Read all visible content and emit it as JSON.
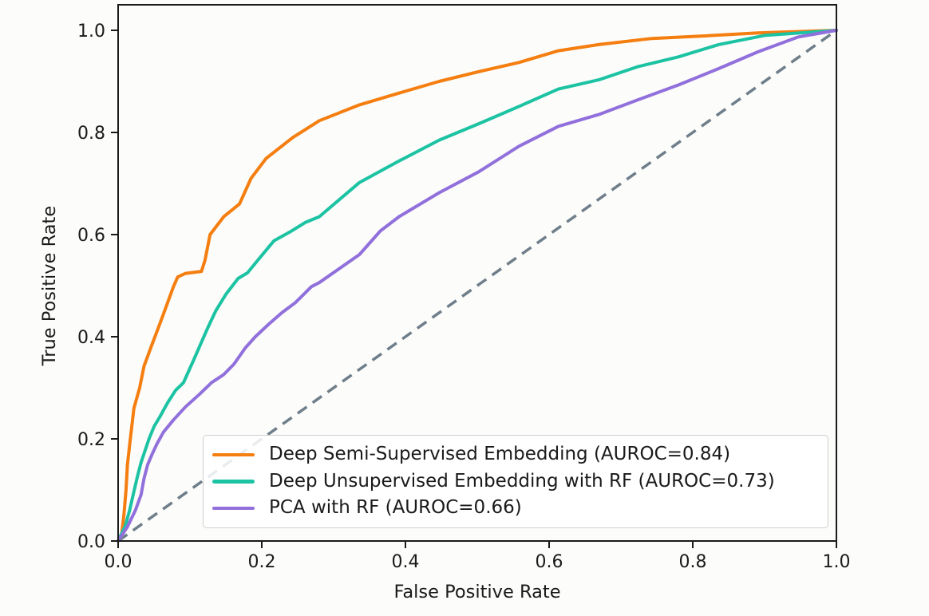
{
  "figure": {
    "background": "#fcfcfa",
    "spine_color": "#1a1a1a",
    "tick_label_color": "#1a1a1a"
  },
  "chart_data": {
    "type": "line",
    "title": "",
    "xlabel": "False Positive Rate",
    "ylabel": "True Positive Rate",
    "xlim": [
      0.0,
      1.0
    ],
    "ylim": [
      0.0,
      1.05
    ],
    "grid": false,
    "xticks": [
      "0.0",
      "0.2",
      "0.4",
      "0.6",
      "0.8",
      "1.0"
    ],
    "yticks": [
      "0.0",
      "0.2",
      "0.4",
      "0.6",
      "0.8",
      "1.0"
    ],
    "legend_position": "lower right inside axes",
    "series": [
      {
        "name": "Deep Semi-Supervised Embedding (AUROC=0.84)",
        "auroc": 0.84,
        "color": "#f57e10",
        "line_style": "solid",
        "points": [
          [
            0,
            0
          ],
          [
            0.005,
            0.015
          ],
          [
            0.008,
            0.05
          ],
          [
            0.011,
            0.1
          ],
          [
            0.013,
            0.15
          ],
          [
            0.017,
            0.2
          ],
          [
            0.022,
            0.26
          ],
          [
            0.03,
            0.3
          ],
          [
            0.036,
            0.342
          ],
          [
            0.047,
            0.384
          ],
          [
            0.058,
            0.425
          ],
          [
            0.069,
            0.467
          ],
          [
            0.077,
            0.498
          ],
          [
            0.083,
            0.517
          ],
          [
            0.094,
            0.524
          ],
          [
            0.116,
            0.528
          ],
          [
            0.121,
            0.55
          ],
          [
            0.128,
            0.6
          ],
          [
            0.147,
            0.635
          ],
          [
            0.169,
            0.66
          ],
          [
            0.185,
            0.71
          ],
          [
            0.206,
            0.749
          ],
          [
            0.243,
            0.79
          ],
          [
            0.28,
            0.823
          ],
          [
            0.336,
            0.854
          ],
          [
            0.391,
            0.877
          ],
          [
            0.447,
            0.9
          ],
          [
            0.502,
            0.919
          ],
          [
            0.558,
            0.937
          ],
          [
            0.613,
            0.96
          ],
          [
            0.669,
            0.972
          ],
          [
            0.743,
            0.984
          ],
          [
            0.817,
            0.989
          ],
          [
            0.891,
            0.995
          ],
          [
            1,
            1
          ]
        ]
      },
      {
        "name": "Deep Unsupervised Embedding with RF (AUROC=0.73)",
        "auroc": 0.73,
        "color": "#1cc3a3",
        "line_style": "solid",
        "points": [
          [
            0,
            0
          ],
          [
            0.01,
            0.03
          ],
          [
            0.016,
            0.06
          ],
          [
            0.021,
            0.091
          ],
          [
            0.027,
            0.127
          ],
          [
            0.032,
            0.154
          ],
          [
            0.043,
            0.2
          ],
          [
            0.05,
            0.224
          ],
          [
            0.058,
            0.243
          ],
          [
            0.069,
            0.271
          ],
          [
            0.08,
            0.295
          ],
          [
            0.091,
            0.31
          ],
          [
            0.106,
            0.357
          ],
          [
            0.124,
            0.415
          ],
          [
            0.136,
            0.451
          ],
          [
            0.15,
            0.483
          ],
          [
            0.167,
            0.514
          ],
          [
            0.18,
            0.525
          ],
          [
            0.194,
            0.549
          ],
          [
            0.217,
            0.588
          ],
          [
            0.239,
            0.605
          ],
          [
            0.261,
            0.624
          ],
          [
            0.28,
            0.635
          ],
          [
            0.336,
            0.702
          ],
          [
            0.391,
            0.744
          ],
          [
            0.447,
            0.785
          ],
          [
            0.502,
            0.817
          ],
          [
            0.558,
            0.851
          ],
          [
            0.613,
            0.885
          ],
          [
            0.669,
            0.903
          ],
          [
            0.724,
            0.929
          ],
          [
            0.78,
            0.948
          ],
          [
            0.836,
            0.972
          ],
          [
            0.9,
            0.99
          ],
          [
            1,
            1
          ]
        ]
      },
      {
        "name": "PCA with RF (AUROC=0.66)",
        "auroc": 0.66,
        "color": "#9170dc",
        "line_style": "solid",
        "points": [
          [
            0,
            0
          ],
          [
            0.013,
            0.028
          ],
          [
            0.024,
            0.06
          ],
          [
            0.032,
            0.091
          ],
          [
            0.036,
            0.122
          ],
          [
            0.041,
            0.149
          ],
          [
            0.047,
            0.169
          ],
          [
            0.054,
            0.19
          ],
          [
            0.063,
            0.213
          ],
          [
            0.077,
            0.237
          ],
          [
            0.094,
            0.263
          ],
          [
            0.113,
            0.287
          ],
          [
            0.13,
            0.31
          ],
          [
            0.147,
            0.326
          ],
          [
            0.161,
            0.346
          ],
          [
            0.177,
            0.378
          ],
          [
            0.191,
            0.4
          ],
          [
            0.21,
            0.425
          ],
          [
            0.228,
            0.447
          ],
          [
            0.247,
            0.467
          ],
          [
            0.269,
            0.498
          ],
          [
            0.28,
            0.506
          ],
          [
            0.336,
            0.561
          ],
          [
            0.365,
            0.607
          ],
          [
            0.391,
            0.635
          ],
          [
            0.447,
            0.682
          ],
          [
            0.502,
            0.723
          ],
          [
            0.558,
            0.773
          ],
          [
            0.613,
            0.812
          ],
          [
            0.669,
            0.835
          ],
          [
            0.724,
            0.864
          ],
          [
            0.78,
            0.893
          ],
          [
            0.836,
            0.925
          ],
          [
            0.891,
            0.958
          ],
          [
            0.947,
            0.987
          ],
          [
            1,
            1
          ]
        ]
      }
    ],
    "reference_line": {
      "name": "chance-diagonal",
      "color": "#6e7e8a",
      "line_style": "dashed",
      "points": [
        [
          0,
          0
        ],
        [
          1,
          1
        ]
      ]
    }
  }
}
